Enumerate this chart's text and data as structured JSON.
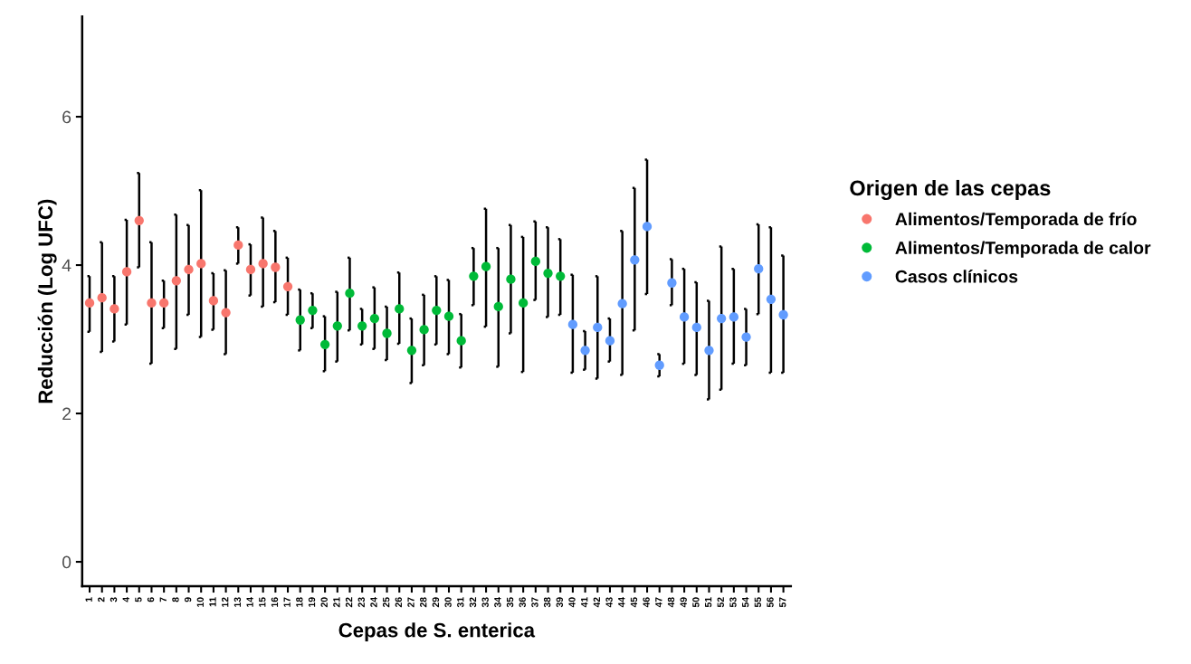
{
  "chart_data": {
    "type": "scatter",
    "xlabel": "Cepas de S. enterica",
    "ylabel": "Reducción (Log UFC)",
    "legend_title": "Origen de las cepas",
    "categories": [
      "1",
      "2",
      "3",
      "4",
      "5",
      "6",
      "7",
      "8",
      "9",
      "10",
      "11",
      "12",
      "13",
      "14",
      "15",
      "16",
      "17",
      "18",
      "19",
      "20",
      "21",
      "22",
      "23",
      "24",
      "25",
      "26",
      "27",
      "28",
      "29",
      "30",
      "31",
      "32",
      "33",
      "34",
      "35",
      "36",
      "37",
      "38",
      "39",
      "40",
      "41",
      "42",
      "43",
      "44",
      "45",
      "46",
      "47",
      "48",
      "49",
      "50",
      "51",
      "52",
      "53",
      "54",
      "55",
      "56",
      "57"
    ],
    "ylim": [
      -0.33,
      7.35
    ],
    "yticks": [
      0,
      2,
      4,
      6
    ],
    "grid": false,
    "legend": "right",
    "marker": "circle",
    "series": [
      {
        "name": "Alimentos/Temporada de frío",
        "color": "#f8766d",
        "x": [
          "1",
          "2",
          "3",
          "4",
          "5",
          "6",
          "7",
          "8",
          "9",
          "10",
          "11",
          "12",
          "13",
          "14",
          "15",
          "16",
          "17"
        ],
        "values": [
          3.49,
          3.56,
          3.41,
          3.91,
          4.6,
          3.49,
          3.49,
          3.79,
          3.94,
          4.02,
          3.52,
          3.36,
          4.27,
          3.94,
          4.02,
          3.97,
          3.71
        ],
        "errors": [
          [
            3.1,
            3.85
          ],
          [
            2.83,
            4.31
          ],
          [
            2.97,
            3.85
          ],
          [
            3.2,
            4.61
          ],
          [
            3.97,
            5.24
          ],
          [
            2.67,
            4.31
          ],
          [
            3.15,
            3.79
          ],
          [
            2.87,
            4.68
          ],
          [
            3.33,
            4.54
          ],
          [
            3.03,
            5.01
          ],
          [
            3.13,
            3.89
          ],
          [
            2.8,
            3.93
          ],
          [
            4.02,
            4.51
          ],
          [
            3.59,
            4.28
          ],
          [
            3.44,
            4.64
          ],
          [
            3.5,
            4.46
          ],
          [
            3.33,
            4.1
          ]
        ]
      },
      {
        "name": "Alimentos/Temporada de calor",
        "color": "#00ba38",
        "x": [
          "18",
          "19",
          "20",
          "21",
          "22",
          "23",
          "24",
          "25",
          "26",
          "27",
          "28",
          "29",
          "30",
          "31",
          "32",
          "33",
          "34",
          "35",
          "36",
          "37",
          "38",
          "39"
        ],
        "values": [
          3.26,
          3.39,
          2.93,
          3.18,
          3.62,
          3.18,
          3.28,
          3.08,
          3.41,
          2.85,
          3.13,
          3.39,
          3.31,
          2.98,
          3.85,
          3.98,
          3.44,
          3.81,
          3.49,
          4.05,
          3.89,
          3.85
        ],
        "errors": [
          [
            2.85,
            3.67
          ],
          [
            3.15,
            3.62
          ],
          [
            2.57,
            3.31
          ],
          [
            2.7,
            3.64
          ],
          [
            3.12,
            4.1
          ],
          [
            2.93,
            3.41
          ],
          [
            2.87,
            3.7
          ],
          [
            2.72,
            3.44
          ],
          [
            2.94,
            3.9
          ],
          [
            2.41,
            3.28
          ],
          [
            2.65,
            3.6
          ],
          [
            2.93,
            3.85
          ],
          [
            2.8,
            3.8
          ],
          [
            2.62,
            3.34
          ],
          [
            3.46,
            4.23
          ],
          [
            3.17,
            4.76
          ],
          [
            2.63,
            4.23
          ],
          [
            3.08,
            4.54
          ],
          [
            2.56,
            4.38
          ],
          [
            3.53,
            4.59
          ],
          [
            3.3,
            4.51
          ],
          [
            3.33,
            4.35
          ]
        ]
      },
      {
        "name": "Casos clínicos",
        "color": "#619cff",
        "x": [
          "40",
          "41",
          "42",
          "43",
          "44",
          "45",
          "46",
          "47",
          "48",
          "49",
          "50",
          "51",
          "52",
          "53",
          "54",
          "55",
          "56",
          "57"
        ],
        "values": [
          3.2,
          2.85,
          3.16,
          2.98,
          3.48,
          4.07,
          4.52,
          2.65,
          3.76,
          3.3,
          3.16,
          2.85,
          3.28,
          3.3,
          3.03,
          3.95,
          3.54,
          3.33
        ],
        "errors": [
          [
            2.55,
            3.87
          ],
          [
            2.59,
            3.11
          ],
          [
            2.47,
            3.85
          ],
          [
            2.7,
            3.28
          ],
          [
            2.52,
            4.46
          ],
          [
            3.12,
            5.04
          ],
          [
            3.61,
            5.42
          ],
          [
            2.5,
            2.8
          ],
          [
            3.46,
            4.08
          ],
          [
            2.67,
            3.95
          ],
          [
            2.52,
            3.77
          ],
          [
            2.19,
            3.52
          ],
          [
            2.32,
            4.25
          ],
          [
            2.67,
            3.95
          ],
          [
            2.65,
            3.41
          ],
          [
            3.34,
            4.55
          ],
          [
            2.55,
            4.51
          ],
          [
            2.55,
            4.13
          ]
        ]
      }
    ]
  }
}
